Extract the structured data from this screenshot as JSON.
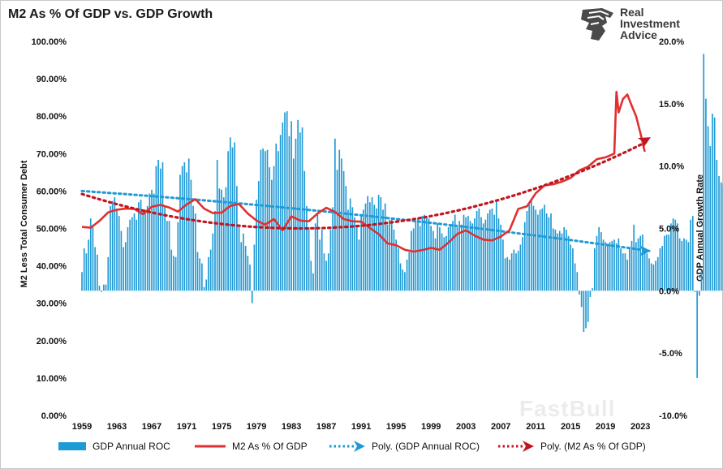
{
  "title": "M2 As % Of GDP vs. GDP Growth",
  "brand": {
    "line1": "Real",
    "line2": "Investment",
    "line3": "Advice"
  },
  "watermark": "FastBull",
  "chart_data": {
    "type": "bar+line",
    "title": "M2 As % Of GDP vs. GDP Growth",
    "xlabel": "",
    "ylabel_left": "M2 Less Total Consumer Debt",
    "ylabel_right": "GDP Annual Growth Rate",
    "ylim_left": [
      0,
      100
    ],
    "ylim_right": [
      -10,
      20
    ],
    "yticks_left": [
      "0.00%",
      "10.00%",
      "20.00%",
      "30.00%",
      "40.00%",
      "50.00%",
      "60.00%",
      "70.00%",
      "80.00%",
      "90.00%",
      "100.00%"
    ],
    "yticks_right": [
      "-10.0%",
      "-5.0%",
      "0.0%",
      "5.0%",
      "10.0%",
      "15.0%",
      "20.0%"
    ],
    "xticks": [
      "1959",
      "1963",
      "1967",
      "1971",
      "1975",
      "1979",
      "1983",
      "1987",
      "1991",
      "1995",
      "1999",
      "2003",
      "2007",
      "2011",
      "2015",
      "2019",
      "2023"
    ],
    "x_range": [
      1959.0,
      2024.0
    ],
    "legend": [
      "GDP Annual ROC",
      "M2 As % Of GDP",
      "Poly. (GDP Annual ROC)",
      "Poly. (M2 As % Of GDP)"
    ],
    "colors": {
      "bars": "#1f9ad6",
      "m2": "#e03030",
      "poly_gdp": "#1f9ad6",
      "poly_m2": "#c0161f"
    },
    "gdp_annual_roc": {
      "x_start": 1959.0,
      "step": 0.25,
      "values": [
        1.5,
        3.4,
        3.0,
        4.1,
        5.8,
        5.3,
        3.5,
        2.9,
        0.4,
        -0.1,
        0.5,
        0.5,
        2.7,
        6.8,
        7.2,
        7.5,
        6.5,
        6.0,
        4.8,
        3.5,
        3.9,
        5.1,
        5.7,
        5.9,
        6.2,
        5.7,
        7.1,
        7.3,
        6.5,
        6.5,
        6.8,
        7.8,
        8.1,
        7.8,
        10.0,
        10.5,
        9.8,
        10.3,
        6.8,
        5.6,
        5.6,
        3.3,
        2.8,
        2.7,
        5.5,
        9.3,
        10.0,
        10.3,
        9.5,
        10.6,
        8.9,
        6.8,
        6.2,
        3.1,
        2.6,
        2.2,
        0.3,
        0.9,
        2.7,
        3.3,
        4.6,
        6.4,
        10.5,
        8.2,
        8.1,
        7.5,
        8.3,
        11.2,
        12.3,
        11.5,
        11.9,
        8.4,
        5.1,
        3.9,
        4.6,
        3.6,
        2.8,
        2.1,
        -1.0,
        3.7,
        7.3,
        8.8,
        11.3,
        11.4,
        11.2,
        11.3,
        9.9,
        8.9,
        10.0,
        11.8,
        11.2,
        12.5,
        13.5,
        14.3,
        14.4,
        12.4,
        13.6,
        10.6,
        12.2,
        13.7,
        12.7,
        13.1,
        9.6,
        6.8,
        5.1,
        2.4,
        1.4,
        5.4,
        6.1,
        4.1,
        4.9,
        3.0,
        2.4,
        3.0,
        4.9,
        6.7,
        12.2,
        9.7,
        11.3,
        10.6,
        9.6,
        8.4,
        6.5,
        7.4,
        6.7,
        5.9,
        5.1,
        4.1,
        6.1,
        6.5,
        7.0,
        7.6,
        7.1,
        7.5,
        6.9,
        6.6,
        7.7,
        7.5,
        6.5,
        7.0,
        5.3,
        5.7,
        5.8,
        4.9,
        4.1,
        3.4,
        2.2,
        1.7,
        1.5,
        2.5,
        3.1,
        4.8,
        5.0,
        5.6,
        5.8,
        5.2,
        6.0,
        6.1,
        5.9,
        5.8,
        5.2,
        4.8,
        4.2,
        5.4,
        5.1,
        4.6,
        4.3,
        4.4,
        5.1,
        5.3,
        5.6,
        6.1,
        5.1,
        5.6,
        5.3,
        6.1,
        5.9,
        6.0,
        5.6,
        5.4,
        5.8,
        6.4,
        6.6,
        5.9,
        5.4,
        5.7,
        6.2,
        6.5,
        6.6,
        6.1,
        7.2,
        5.8,
        5.3,
        4.1,
        2.6,
        2.7,
        2.5,
        3.0,
        3.3,
        3.0,
        3.2,
        3.7,
        4.3,
        5.5,
        6.4,
        6.9,
        7.4,
        6.8,
        6.5,
        6.1,
        6.5,
        6.6,
        6.9,
        6.2,
        5.9,
        6.2,
        5.0,
        4.9,
        4.6,
        4.8,
        4.6,
        5.1,
        4.9,
        4.4,
        3.7,
        3.4,
        2.2,
        1.5,
        -0.3,
        -1.3,
        -3.3,
        -3.0,
        -2.5,
        -0.5,
        0.2,
        3.4,
        4.4,
        5.1,
        4.7,
        4.1,
        3.9,
        3.6,
        3.9,
        4.0,
        4.1,
        3.8,
        4.2,
        3.4,
        3.0,
        3.0,
        2.5,
        3.5,
        4.0,
        5.3,
        3.9,
        4.2,
        4.4,
        4.5,
        3.3,
        3.0,
        2.6,
        2.2,
        2.1,
        2.4,
        2.7,
        3.4,
        3.6,
        4.4,
        4.5,
        4.5,
        5.4,
        5.8,
        5.7,
        5.4,
        4.2,
        4.0,
        4.2,
        4.1,
        3.9,
        5.7,
        6.0,
        -0.1,
        -7.0,
        -0.4,
        1.6,
        19.0,
        15.4,
        13.2,
        11.6,
        14.2,
        13.9,
        10.5,
        9.2,
        8.7,
        8.5,
        8.6,
        6.9,
        6.3,
        5.5,
        4.8,
        5.5,
        5.5,
        4.6,
        5.5,
        4.3,
        3.2,
        4.3,
        4.9
      ]
    },
    "m2_pct_gdp": {
      "points": [
        [
          1959.0,
          50.4
        ],
        [
          1960.0,
          50.2
        ],
        [
          1961.0,
          52.0
        ],
        [
          1962.0,
          54.3
        ],
        [
          1963.0,
          55.0
        ],
        [
          1964.0,
          55.3
        ],
        [
          1965.0,
          55.2
        ],
        [
          1966.0,
          53.8
        ],
        [
          1967.0,
          55.8
        ],
        [
          1968.0,
          56.3
        ],
        [
          1969.0,
          55.6
        ],
        [
          1970.0,
          54.5
        ],
        [
          1971.0,
          56.4
        ],
        [
          1972.0,
          57.8
        ],
        [
          1973.0,
          55.3
        ],
        [
          1974.0,
          54.1
        ],
        [
          1975.0,
          54.2
        ],
        [
          1976.0,
          56.0
        ],
        [
          1977.0,
          56.5
        ],
        [
          1978.0,
          54.0
        ],
        [
          1979.0,
          52.1
        ],
        [
          1980.0,
          51.0
        ],
        [
          1981.0,
          52.5
        ],
        [
          1982.0,
          49.5
        ],
        [
          1983.0,
          53.2
        ],
        [
          1984.0,
          52.1
        ],
        [
          1985.0,
          51.9
        ],
        [
          1986.0,
          54.0
        ],
        [
          1987.0,
          55.5
        ],
        [
          1988.0,
          54.4
        ],
        [
          1989.0,
          52.5
        ],
        [
          1990.0,
          51.9
        ],
        [
          1991.0,
          51.8
        ],
        [
          1992.0,
          50.1
        ],
        [
          1993.0,
          48.5
        ],
        [
          1994.0,
          46.0
        ],
        [
          1995.0,
          45.5
        ],
        [
          1996.0,
          44.3
        ],
        [
          1997.0,
          43.8
        ],
        [
          1998.0,
          44.2
        ],
        [
          1999.0,
          44.8
        ],
        [
          2000.0,
          44.3
        ],
        [
          2001.0,
          46.2
        ],
        [
          2002.0,
          48.5
        ],
        [
          2003.0,
          49.5
        ],
        [
          2004.0,
          48.1
        ],
        [
          2005.0,
          47.0
        ],
        [
          2006.0,
          46.8
        ],
        [
          2007.0,
          47.8
        ],
        [
          2008.0,
          49.5
        ],
        [
          2009.0,
          55.2
        ],
        [
          2010.0,
          55.9
        ],
        [
          2011.0,
          59.4
        ],
        [
          2012.0,
          61.5
        ],
        [
          2013.0,
          61.8
        ],
        [
          2014.0,
          62.5
        ],
        [
          2015.0,
          63.5
        ],
        [
          2016.0,
          65.5
        ],
        [
          2017.0,
          66.5
        ],
        [
          2018.0,
          68.5
        ],
        [
          2019.0,
          69.0
        ],
        [
          2020.0,
          70.0
        ],
        [
          2020.25,
          86.5
        ],
        [
          2020.5,
          81.0
        ],
        [
          2021.0,
          84.6
        ],
        [
          2021.5,
          85.8
        ],
        [
          2022.0,
          82.8
        ],
        [
          2022.5,
          80.0
        ],
        [
          2023.0,
          75.5
        ],
        [
          2023.5,
          70.5
        ]
      ]
    },
    "poly_gdp_annual_roc": {
      "start": [
        1959.0,
        8.0
      ],
      "end": [
        2024.0,
        3.2
      ]
    },
    "poly_m2_pct_gdp": {
      "start": [
        1959.0,
        59.2
      ],
      "min": [
        1984.0,
        50.0
      ],
      "end": [
        2024.0,
        73.5
      ]
    }
  },
  "legend_items": [
    {
      "label": "GDP Annual ROC"
    },
    {
      "label": "M2 As % Of GDP"
    },
    {
      "label": "Poly. (GDP Annual ROC)"
    },
    {
      "label": "Poly. (M2 As % Of GDP)"
    }
  ]
}
